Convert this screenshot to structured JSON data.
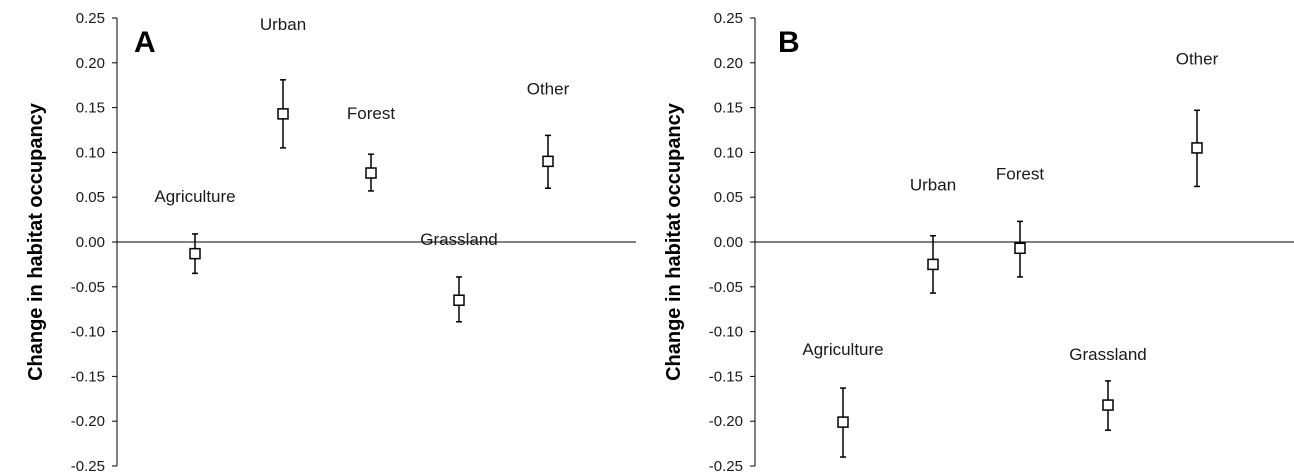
{
  "chart_data": [
    {
      "type": "scatter",
      "panel_label": "A",
      "ylabel": "Change in habitat occupancy",
      "ylim": [
        -0.25,
        0.25
      ],
      "yticks": [
        "0.25",
        "0.20",
        "0.15",
        "0.10",
        "0.05",
        "0.00",
        "-0.05",
        "-0.10",
        "-0.15",
        "-0.20",
        "-0.25"
      ],
      "grid": false,
      "points": [
        {
          "label": "Agriculture",
          "y": -0.013,
          "err_low": -0.035,
          "err_high": 0.009
        },
        {
          "label": "Urban",
          "y": 0.143,
          "err_low": 0.105,
          "err_high": 0.181
        },
        {
          "label": "Forest",
          "y": 0.077,
          "err_low": 0.057,
          "err_high": 0.098
        },
        {
          "label": "Grassland",
          "y": -0.065,
          "err_low": -0.089,
          "err_high": -0.039
        },
        {
          "label": "Other",
          "y": 0.09,
          "err_low": 0.06,
          "err_high": 0.119
        }
      ]
    },
    {
      "type": "scatter",
      "panel_label": "B",
      "ylabel": "Change in habitat occupancy",
      "ylim": [
        -0.25,
        0.25
      ],
      "yticks": [
        "0.25",
        "0.20",
        "0.15",
        "0.10",
        "0.05",
        "0.00",
        "-0.05",
        "-0.10",
        "-0.15",
        "-0.20",
        "-0.25"
      ],
      "grid": false,
      "points": [
        {
          "label": "Agriculture",
          "y": -0.201,
          "err_low": -0.24,
          "err_high": -0.163
        },
        {
          "label": "Urban",
          "y": -0.025,
          "err_low": -0.057,
          "err_high": 0.007
        },
        {
          "label": "Forest",
          "y": -0.007,
          "err_low": -0.039,
          "err_high": 0.023
        },
        {
          "label": "Grassland",
          "y": -0.182,
          "err_low": -0.21,
          "err_high": -0.155
        },
        {
          "label": "Other",
          "y": 0.105,
          "err_low": 0.062,
          "err_high": 0.147
        }
      ]
    }
  ]
}
